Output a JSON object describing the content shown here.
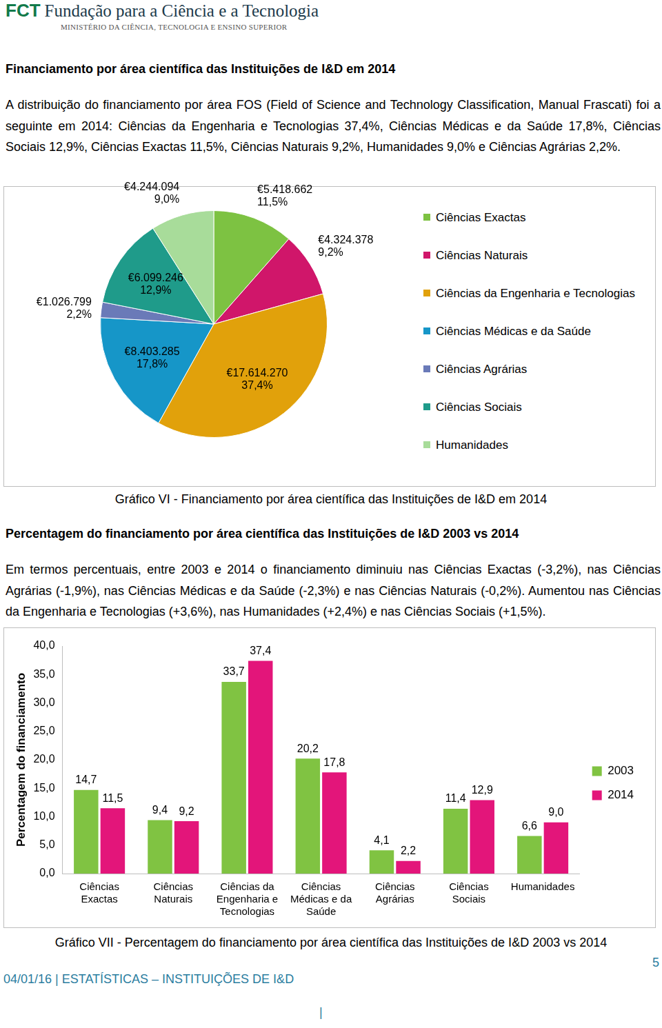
{
  "header": {
    "logo": "FCT",
    "name": "Fundação para a Ciência e a Tecnologia",
    "ministry": "MINISTÉRIO DA CIÊNCIA, TECNOLOGIA E ENSINO SUPERIOR"
  },
  "sections": [
    {
      "heading": "Financiamento por área científica das Instituições de I&D em 2014",
      "paragraph": "A distribuição do financiamento por área FOS (Field of Science and Technology Classification, Manual Frascati) foi a seguinte em 2014: Ciências da Engenharia e Tecnologias 37,4%, Ciências Médicas e da Saúde 17,8%, Ciências Sociais 12,9%, Ciências Exactas 11,5%, Ciências Naturais 9,2%, Humanidades 9,0% e Ciências Agrárias 2,2%."
    },
    {
      "heading": "Percentagem do financiamento por área científica das Instituições de I&D 2003 vs 2014",
      "paragraph": "Em termos percentuais, entre 2003 e 2014 o financiamento diminuiu nas Ciências Exactas (-3,2%), nas Ciências Agrárias (-1,9%), nas Ciências Médicas e da Saúde (-2,3%) e nas Ciências Naturais (-0,2%). Aumentou nas Ciências da Engenharia e Tecnologias (+3,6%), nas Humanidades (+2,4%) e nas Ciências Sociais (+1,5%)."
    }
  ],
  "chart_data": [
    {
      "type": "pie",
      "title": "Gráfico VI - Financiamento por área científica das Instituições de I&D em 2014",
      "categories": [
        "Ciências Exactas",
        "Ciências Naturais",
        "Ciências da Engenharia e Tecnologias",
        "Ciências Médicas e da Saúde",
        "Ciências Agrárias",
        "Ciências Sociais",
        "Humanidades"
      ],
      "values": [
        11.5,
        9.2,
        37.4,
        17.8,
        2.2,
        12.9,
        9.0
      ],
      "value_labels": [
        "11,5%",
        "9,2%",
        "37,4%",
        "17,8%",
        "2,2%",
        "12,9%",
        "9,0%"
      ],
      "amount_labels": [
        "€5.418.662",
        "€4.324.378",
        "€17.614.270",
        "€8.403.285",
        "€1.026.799",
        "€6.099.246",
        "€4.244.094"
      ],
      "colors": [
        "#7dc242",
        "#d0166a",
        "#e1a10b",
        "#1696c8",
        "#6a7ab8",
        "#1f9b8a",
        "#a8dc9a"
      ],
      "data_labels": true,
      "legend": "right"
    },
    {
      "type": "bar",
      "title": "Gráfico VII - Percentagem do financiamento por área científica das Instituições de I&D 2003 vs 2014",
      "y_label": "Percentagem do financiamento",
      "categories": [
        "Ciências Exactas",
        "Ciências Naturais",
        "Ciências da Engenharia e Tecnologias",
        "Ciências Médicas e da Saúde",
        "Ciências Agrárias",
        "Ciências Sociais",
        "Humanidades"
      ],
      "series": [
        {
          "name": "2003",
          "color": "#80c342",
          "values": [
            14.7,
            9.4,
            33.7,
            20.2,
            4.1,
            11.4,
            6.6
          ],
          "value_labels": [
            "14,7",
            "9,4",
            "33,7",
            "20,2",
            "4,1",
            "11,4",
            "6,6"
          ]
        },
        {
          "name": "2014",
          "color": "#e3157a",
          "values": [
            11.5,
            9.2,
            37.4,
            17.8,
            2.2,
            12.9,
            9.0
          ],
          "value_labels": [
            "11,5",
            "9,2",
            "37,4",
            "17,8",
            "2,2",
            "12,9",
            "9,0"
          ]
        }
      ],
      "ylim": [
        0,
        40
      ],
      "yticks": [
        {
          "value": 0,
          "label": "0,0"
        },
        {
          "value": 5,
          "label": "5,0"
        },
        {
          "value": 10,
          "label": "10,0"
        },
        {
          "value": 15,
          "label": "15,0"
        },
        {
          "value": 20,
          "label": "20,0"
        },
        {
          "value": 25,
          "label": "25,0"
        },
        {
          "value": 30,
          "label": "30,0"
        },
        {
          "value": 35,
          "label": "35,0"
        },
        {
          "value": 40,
          "label": "40,0"
        }
      ],
      "grid": false,
      "legend": "right",
      "data_labels": true
    }
  ],
  "footer": {
    "text": "04/01/16 | ESTATÍSTICAS – INSTITUIÇÕES DE I&D",
    "page": "5",
    "mark": "|"
  }
}
